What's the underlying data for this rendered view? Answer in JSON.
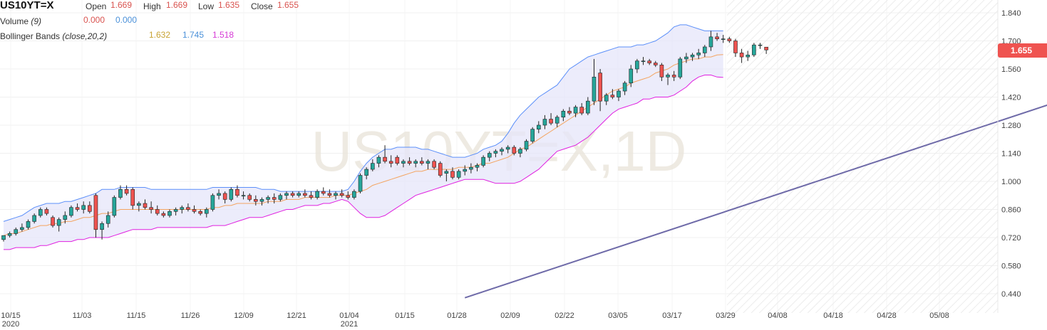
{
  "legend": {
    "symbol": "US10YT=X",
    "ohlc": {
      "open_label": "Open",
      "open": "1.669",
      "high_label": "High",
      "high": "1.669",
      "low_label": "Low",
      "low": "1.635",
      "close_label": "Close",
      "close": "1.655"
    },
    "volume": {
      "name": "Volume",
      "param": "(9)",
      "v1": "0.000",
      "v2": "0.000"
    },
    "bollinger": {
      "name": "Bollinger Bands",
      "param": "(close,20,2)",
      "mid": "1.632",
      "upper": "1.745",
      "lower": "1.518"
    }
  },
  "last_price_tag": "1.655",
  "watermark": "US10YT=X,1D",
  "colors": {
    "up": "#26a69a",
    "down": "#ef5350",
    "band_line": "#5b8ff9",
    "band_fill": "#e6e6fa",
    "lower_band": "#e020e0",
    "mid_band": "#f4a460",
    "trendline": "#6e6aa8",
    "value_red": "#d9534f",
    "value_blue": "#4a90d9",
    "value_gold": "#c8a232",
    "value_magenta": "#d63ad6",
    "tag": "#ef5350"
  },
  "chart_data": {
    "type": "candlestick",
    "y_axis": {
      "ticks": [
        "1.840",
        "1.700",
        "1.560",
        "1.420",
        "1.280",
        "1.140",
        "1.000",
        "0.860",
        "0.720",
        "0.580",
        "0.440"
      ],
      "range": [
        0.33,
        1.9
      ]
    },
    "x_axis": {
      "ticks": [
        {
          "label": "10/15",
          "sub": "2020",
          "date": "2020-10-15"
        },
        {
          "label": "11/03",
          "sub": "",
          "date": "2020-11-03"
        },
        {
          "label": "11/15",
          "sub": "",
          "date": "2020-11-15"
        },
        {
          "label": "11/26",
          "sub": "",
          "date": "2020-11-26"
        },
        {
          "label": "12/09",
          "sub": "",
          "date": "2020-12-09"
        },
        {
          "label": "12/21",
          "sub": "",
          "date": "2020-12-21"
        },
        {
          "label": "01/04",
          "sub": "2021",
          "date": "2021-01-04"
        },
        {
          "label": "01/15",
          "sub": "",
          "date": "2021-01-15"
        },
        {
          "label": "01/28",
          "sub": "",
          "date": "2021-01-28"
        },
        {
          "label": "02/09",
          "sub": "",
          "date": "2021-02-09"
        },
        {
          "label": "02/22",
          "sub": "",
          "date": "2021-02-22"
        },
        {
          "label": "03/05",
          "sub": "",
          "date": "2021-03-05"
        },
        {
          "label": "03/17",
          "sub": "",
          "date": "2021-03-17"
        },
        {
          "label": "03/29",
          "sub": "",
          "date": "2021-03-29"
        },
        {
          "label": "04/08",
          "sub": "",
          "date": "2021-04-08"
        },
        {
          "label": "04/18",
          "sub": "",
          "date": "2021-04-18"
        },
        {
          "label": "04/28",
          "sub": "",
          "date": "2021-04-28"
        },
        {
          "label": "05/08",
          "sub": "",
          "date": "2021-05-08"
        }
      ]
    },
    "candles": [
      {
        "o": 0.71,
        "h": 0.73,
        "l": 0.7,
        "c": 0.73
      },
      {
        "o": 0.73,
        "h": 0.75,
        "l": 0.72,
        "c": 0.74
      },
      {
        "o": 0.74,
        "h": 0.77,
        "l": 0.73,
        "c": 0.76
      },
      {
        "o": 0.76,
        "h": 0.79,
        "l": 0.75,
        "c": 0.77
      },
      {
        "o": 0.77,
        "h": 0.81,
        "l": 0.76,
        "c": 0.8
      },
      {
        "o": 0.8,
        "h": 0.84,
        "l": 0.79,
        "c": 0.83
      },
      {
        "o": 0.83,
        "h": 0.87,
        "l": 0.82,
        "c": 0.86
      },
      {
        "o": 0.86,
        "h": 0.87,
        "l": 0.83,
        "c": 0.84
      },
      {
        "o": 0.82,
        "h": 0.83,
        "l": 0.77,
        "c": 0.78
      },
      {
        "o": 0.78,
        "h": 0.82,
        "l": 0.75,
        "c": 0.81
      },
      {
        "o": 0.81,
        "h": 0.85,
        "l": 0.79,
        "c": 0.83
      },
      {
        "o": 0.83,
        "h": 0.88,
        "l": 0.82,
        "c": 0.87
      },
      {
        "o": 0.87,
        "h": 0.89,
        "l": 0.85,
        "c": 0.86
      },
      {
        "o": 0.86,
        "h": 0.9,
        "l": 0.84,
        "c": 0.88
      },
      {
        "o": 0.88,
        "h": 0.9,
        "l": 0.84,
        "c": 0.85
      },
      {
        "o": 0.93,
        "h": 0.94,
        "l": 0.72,
        "c": 0.76
      },
      {
        "o": 0.76,
        "h": 0.8,
        "l": 0.71,
        "c": 0.79
      },
      {
        "o": 0.79,
        "h": 0.85,
        "l": 0.77,
        "c": 0.83
      },
      {
        "o": 0.83,
        "h": 0.93,
        "l": 0.82,
        "c": 0.92
      },
      {
        "o": 0.92,
        "h": 0.98,
        "l": 0.91,
        "c": 0.96
      },
      {
        "o": 0.96,
        "h": 0.98,
        "l": 0.93,
        "c": 0.94
      },
      {
        "o": 0.96,
        "h": 0.97,
        "l": 0.86,
        "c": 0.88
      },
      {
        "o": 0.88,
        "h": 0.9,
        "l": 0.85,
        "c": 0.89
      },
      {
        "o": 0.89,
        "h": 0.91,
        "l": 0.86,
        "c": 0.87
      },
      {
        "o": 0.87,
        "h": 0.9,
        "l": 0.84,
        "c": 0.86
      },
      {
        "o": 0.86,
        "h": 0.88,
        "l": 0.83,
        "c": 0.84
      },
      {
        "o": 0.84,
        "h": 0.85,
        "l": 0.82,
        "c": 0.83
      },
      {
        "o": 0.83,
        "h": 0.86,
        "l": 0.82,
        "c": 0.85
      },
      {
        "o": 0.85,
        "h": 0.87,
        "l": 0.83,
        "c": 0.86
      },
      {
        "o": 0.86,
        "h": 0.88,
        "l": 0.84,
        "c": 0.87
      },
      {
        "o": 0.87,
        "h": 0.89,
        "l": 0.85,
        "c": 0.86
      },
      {
        "o": 0.86,
        "h": 0.88,
        "l": 0.84,
        "c": 0.85
      },
      {
        "o": 0.85,
        "h": 0.86,
        "l": 0.83,
        "c": 0.84
      },
      {
        "o": 0.84,
        "h": 0.87,
        "l": 0.82,
        "c": 0.86
      },
      {
        "o": 0.86,
        "h": 0.94,
        "l": 0.85,
        "c": 0.93
      },
      {
        "o": 0.93,
        "h": 0.96,
        "l": 0.91,
        "c": 0.94
      },
      {
        "o": 0.94,
        "h": 0.95,
        "l": 0.89,
        "c": 0.91
      },
      {
        "o": 0.91,
        "h": 0.97,
        "l": 0.9,
        "c": 0.96
      },
      {
        "o": 0.96,
        "h": 0.98,
        "l": 0.92,
        "c": 0.93
      },
      {
        "o": 0.93,
        "h": 0.95,
        "l": 0.91,
        "c": 0.93
      },
      {
        "o": 0.93,
        "h": 0.94,
        "l": 0.9,
        "c": 0.91
      },
      {
        "o": 0.91,
        "h": 0.93,
        "l": 0.88,
        "c": 0.9
      },
      {
        "o": 0.9,
        "h": 0.92,
        "l": 0.88,
        "c": 0.91
      },
      {
        "o": 0.91,
        "h": 0.93,
        "l": 0.89,
        "c": 0.92
      },
      {
        "o": 0.92,
        "h": 0.94,
        "l": 0.89,
        "c": 0.91
      },
      {
        "o": 0.91,
        "h": 0.94,
        "l": 0.9,
        "c": 0.93
      },
      {
        "o": 0.93,
        "h": 0.95,
        "l": 0.91,
        "c": 0.94
      },
      {
        "o": 0.94,
        "h": 0.95,
        "l": 0.92,
        "c": 0.93
      },
      {
        "o": 0.93,
        "h": 0.95,
        "l": 0.92,
        "c": 0.94
      },
      {
        "o": 0.94,
        "h": 0.96,
        "l": 0.92,
        "c": 0.93
      },
      {
        "o": 0.93,
        "h": 0.95,
        "l": 0.91,
        "c": 0.92
      },
      {
        "o": 0.92,
        "h": 0.96,
        "l": 0.91,
        "c": 0.95
      },
      {
        "o": 0.95,
        "h": 0.97,
        "l": 0.93,
        "c": 0.94
      },
      {
        "o": 0.94,
        "h": 0.96,
        "l": 0.92,
        "c": 0.93
      },
      {
        "o": 0.93,
        "h": 0.95,
        "l": 0.91,
        "c": 0.94
      },
      {
        "o": 0.94,
        "h": 0.96,
        "l": 0.92,
        "c": 0.93
      },
      {
        "o": 0.93,
        "h": 0.95,
        "l": 0.91,
        "c": 0.92
      },
      {
        "o": 0.92,
        "h": 0.96,
        "l": 0.91,
        "c": 0.95
      },
      {
        "o": 0.95,
        "h": 1.04,
        "l": 0.94,
        "c": 1.03
      },
      {
        "o": 1.03,
        "h": 1.07,
        "l": 1.01,
        "c": 1.06
      },
      {
        "o": 1.06,
        "h": 1.11,
        "l": 1.05,
        "c": 1.09
      },
      {
        "o": 1.09,
        "h": 1.13,
        "l": 1.07,
        "c": 1.12
      },
      {
        "o": 1.12,
        "h": 1.18,
        "l": 1.09,
        "c": 1.1
      },
      {
        "o": 1.1,
        "h": 1.13,
        "l": 1.07,
        "c": 1.09
      },
      {
        "o": 1.12,
        "h": 1.13,
        "l": 1.08,
        "c": 1.09
      },
      {
        "o": 1.09,
        "h": 1.11,
        "l": 1.07,
        "c": 1.1
      },
      {
        "o": 1.1,
        "h": 1.12,
        "l": 1.08,
        "c": 1.09
      },
      {
        "o": 1.09,
        "h": 1.11,
        "l": 1.07,
        "c": 1.1
      },
      {
        "o": 1.1,
        "h": 1.12,
        "l": 1.08,
        "c": 1.09
      },
      {
        "o": 1.09,
        "h": 1.11,
        "l": 1.06,
        "c": 1.1
      },
      {
        "o": 1.1,
        "h": 1.11,
        "l": 1.06,
        "c": 1.07
      },
      {
        "o": 1.09,
        "h": 1.1,
        "l": 1.02,
        "c": 1.03
      },
      {
        "o": 1.04,
        "h": 1.06,
        "l": 1.0,
        "c": 1.05
      },
      {
        "o": 1.05,
        "h": 1.07,
        "l": 1.01,
        "c": 1.02
      },
      {
        "o": 1.02,
        "h": 1.06,
        "l": 1.01,
        "c": 1.05
      },
      {
        "o": 1.05,
        "h": 1.08,
        "l": 1.03,
        "c": 1.06
      },
      {
        "o": 1.06,
        "h": 1.09,
        "l": 1.04,
        "c": 1.07
      },
      {
        "o": 1.07,
        "h": 1.09,
        "l": 1.05,
        "c": 1.08
      },
      {
        "o": 1.08,
        "h": 1.13,
        "l": 1.07,
        "c": 1.12
      },
      {
        "o": 1.12,
        "h": 1.15,
        "l": 1.1,
        "c": 1.14
      },
      {
        "o": 1.14,
        "h": 1.16,
        "l": 1.12,
        "c": 1.15
      },
      {
        "o": 1.15,
        "h": 1.17,
        "l": 1.13,
        "c": 1.16
      },
      {
        "o": 1.16,
        "h": 1.18,
        "l": 1.14,
        "c": 1.17
      },
      {
        "o": 1.17,
        "h": 1.18,
        "l": 1.13,
        "c": 1.14
      },
      {
        "o": 1.14,
        "h": 1.17,
        "l": 1.12,
        "c": 1.16
      },
      {
        "o": 1.16,
        "h": 1.21,
        "l": 1.15,
        "c": 1.2
      },
      {
        "o": 1.2,
        "h": 1.27,
        "l": 1.19,
        "c": 1.26
      },
      {
        "o": 1.26,
        "h": 1.3,
        "l": 1.24,
        "c": 1.28
      },
      {
        "o": 1.28,
        "h": 1.33,
        "l": 1.26,
        "c": 1.31
      },
      {
        "o": 1.31,
        "h": 1.34,
        "l": 1.28,
        "c": 1.29
      },
      {
        "o": 1.29,
        "h": 1.33,
        "l": 1.27,
        "c": 1.32
      },
      {
        "o": 1.32,
        "h": 1.36,
        "l": 1.3,
        "c": 1.35
      },
      {
        "o": 1.35,
        "h": 1.37,
        "l": 1.33,
        "c": 1.34
      },
      {
        "o": 1.34,
        "h": 1.38,
        "l": 1.32,
        "c": 1.37
      },
      {
        "o": 1.37,
        "h": 1.39,
        "l": 1.33,
        "c": 1.34
      },
      {
        "o": 1.34,
        "h": 1.42,
        "l": 1.33,
        "c": 1.4
      },
      {
        "o": 1.4,
        "h": 1.61,
        "l": 1.38,
        "c": 1.52
      },
      {
        "o": 1.54,
        "h": 1.56,
        "l": 1.35,
        "c": 1.4
      },
      {
        "o": 1.4,
        "h": 1.44,
        "l": 1.38,
        "c": 1.43
      },
      {
        "o": 1.43,
        "h": 1.46,
        "l": 1.41,
        "c": 1.42
      },
      {
        "o": 1.42,
        "h": 1.46,
        "l": 1.4,
        "c": 1.45
      },
      {
        "o": 1.45,
        "h": 1.5,
        "l": 1.43,
        "c": 1.49
      },
      {
        "o": 1.49,
        "h": 1.58,
        "l": 1.47,
        "c": 1.56
      },
      {
        "o": 1.56,
        "h": 1.61,
        "l": 1.54,
        "c": 1.6
      },
      {
        "o": 1.6,
        "h": 1.62,
        "l": 1.58,
        "c": 1.6
      },
      {
        "o": 1.6,
        "h": 1.61,
        "l": 1.58,
        "c": 1.59
      },
      {
        "o": 1.59,
        "h": 1.6,
        "l": 1.57,
        "c": 1.58
      },
      {
        "o": 1.58,
        "h": 1.59,
        "l": 1.5,
        "c": 1.52
      },
      {
        "o": 1.52,
        "h": 1.54,
        "l": 1.48,
        "c": 1.53
      },
      {
        "o": 1.53,
        "h": 1.55,
        "l": 1.5,
        "c": 1.52
      },
      {
        "o": 1.52,
        "h": 1.62,
        "l": 1.51,
        "c": 1.61
      },
      {
        "o": 1.61,
        "h": 1.64,
        "l": 1.59,
        "c": 1.62
      },
      {
        "o": 1.62,
        "h": 1.64,
        "l": 1.6,
        "c": 1.63
      },
      {
        "o": 1.63,
        "h": 1.66,
        "l": 1.61,
        "c": 1.64
      },
      {
        "o": 1.64,
        "h": 1.68,
        "l": 1.62,
        "c": 1.67
      },
      {
        "o": 1.67,
        "h": 1.75,
        "l": 1.65,
        "c": 1.72
      },
      {
        "o": 1.72,
        "h": 1.74,
        "l": 1.7,
        "c": 1.71
      },
      {
        "o": 1.71,
        "h": 1.73,
        "l": 1.69,
        "c": 1.71
      },
      {
        "o": 1.71,
        "h": 1.72,
        "l": 1.69,
        "c": 1.7
      },
      {
        "o": 1.7,
        "h": 1.71,
        "l": 1.62,
        "c": 1.64
      },
      {
        "o": 1.64,
        "h": 1.66,
        "l": 1.59,
        "c": 1.62
      },
      {
        "o": 1.62,
        "h": 1.65,
        "l": 1.6,
        "c": 1.63
      },
      {
        "o": 1.63,
        "h": 1.69,
        "l": 1.62,
        "c": 1.68
      },
      {
        "o": 1.68,
        "h": 1.69,
        "l": 1.66,
        "c": 1.68
      },
      {
        "o": 1.669,
        "h": 1.669,
        "l": 1.635,
        "c": 1.655
      }
    ],
    "bollinger_upper": [
      0.8,
      0.81,
      0.82,
      0.83,
      0.85,
      0.87,
      0.88,
      0.89,
      0.89,
      0.89,
      0.9,
      0.9,
      0.91,
      0.92,
      0.93,
      0.94,
      0.96,
      0.96,
      0.96,
      0.97,
      0.97,
      0.97,
      0.97,
      0.97,
      0.96,
      0.96,
      0.96,
      0.96,
      0.96,
      0.96,
      0.96,
      0.96,
      0.96,
      0.96,
      0.97,
      0.97,
      0.97,
      0.97,
      0.97,
      0.97,
      0.97,
      0.97,
      0.96,
      0.96,
      0.96,
      0.95,
      0.95,
      0.95,
      0.95,
      0.95,
      0.95,
      0.95,
      0.95,
      0.95,
      0.95,
      0.95,
      0.96,
      1.0,
      1.05,
      1.09,
      1.12,
      1.14,
      1.16,
      1.16,
      1.17,
      1.17,
      1.17,
      1.17,
      1.16,
      1.16,
      1.15,
      1.14,
      1.13,
      1.12,
      1.12,
      1.12,
      1.13,
      1.14,
      1.16,
      1.17,
      1.18,
      1.2,
      1.24,
      1.29,
      1.33,
      1.36,
      1.39,
      1.42,
      1.44,
      1.46,
      1.48,
      1.52,
      1.56,
      1.58,
      1.6,
      1.62,
      1.63,
      1.64,
      1.65,
      1.66,
      1.67,
      1.67,
      1.67,
      1.68,
      1.68,
      1.69,
      1.7,
      1.72,
      1.74,
      1.77,
      1.78,
      1.78,
      1.77,
      1.76,
      1.75,
      1.75,
      1.75,
      1.75
    ],
    "bollinger_mid": [
      0.73,
      0.74,
      0.74,
      0.75,
      0.76,
      0.77,
      0.78,
      0.78,
      0.79,
      0.79,
      0.8,
      0.8,
      0.81,
      0.82,
      0.82,
      0.83,
      0.84,
      0.84,
      0.85,
      0.86,
      0.86,
      0.86,
      0.86,
      0.86,
      0.86,
      0.86,
      0.86,
      0.86,
      0.86,
      0.86,
      0.86,
      0.86,
      0.86,
      0.86,
      0.87,
      0.87,
      0.88,
      0.88,
      0.89,
      0.89,
      0.89,
      0.89,
      0.89,
      0.9,
      0.9,
      0.9,
      0.91,
      0.91,
      0.91,
      0.92,
      0.92,
      0.92,
      0.92,
      0.92,
      0.93,
      0.93,
      0.93,
      0.94,
      0.95,
      0.96,
      0.98,
      0.99,
      1.0,
      1.01,
      1.02,
      1.03,
      1.04,
      1.05,
      1.05,
      1.06,
      1.06,
      1.06,
      1.06,
      1.06,
      1.07,
      1.07,
      1.07,
      1.08,
      1.09,
      1.09,
      1.1,
      1.11,
      1.12,
      1.14,
      1.16,
      1.17,
      1.19,
      1.21,
      1.23,
      1.25,
      1.27,
      1.29,
      1.31,
      1.33,
      1.35,
      1.37,
      1.39,
      1.41,
      1.43,
      1.45,
      1.46,
      1.47,
      1.49,
      1.5,
      1.51,
      1.52,
      1.54,
      1.55,
      1.56,
      1.58,
      1.59,
      1.6,
      1.61,
      1.61,
      1.62,
      1.62,
      1.63,
      1.632
    ],
    "bollinger_lower": [
      0.66,
      0.66,
      0.67,
      0.67,
      0.67,
      0.67,
      0.68,
      0.68,
      0.69,
      0.7,
      0.7,
      0.7,
      0.71,
      0.71,
      0.72,
      0.72,
      0.72,
      0.72,
      0.73,
      0.74,
      0.75,
      0.76,
      0.76,
      0.76,
      0.76,
      0.77,
      0.77,
      0.77,
      0.77,
      0.77,
      0.77,
      0.77,
      0.77,
      0.77,
      0.78,
      0.78,
      0.78,
      0.79,
      0.8,
      0.81,
      0.82,
      0.82,
      0.82,
      0.83,
      0.84,
      0.85,
      0.86,
      0.86,
      0.87,
      0.88,
      0.88,
      0.88,
      0.89,
      0.89,
      0.9,
      0.91,
      0.9,
      0.87,
      0.84,
      0.82,
      0.82,
      0.82,
      0.83,
      0.85,
      0.87,
      0.89,
      0.91,
      0.93,
      0.94,
      0.95,
      0.96,
      0.97,
      0.98,
      0.99,
      1.0,
      1.01,
      1.01,
      1.01,
      1.01,
      1.0,
      0.99,
      0.99,
      0.99,
      0.99,
      1.0,
      1.02,
      1.04,
      1.06,
      1.09,
      1.12,
      1.15,
      1.16,
      1.17,
      1.18,
      1.2,
      1.22,
      1.25,
      1.28,
      1.31,
      1.34,
      1.36,
      1.37,
      1.38,
      1.39,
      1.41,
      1.41,
      1.42,
      1.42,
      1.42,
      1.43,
      1.45,
      1.47,
      1.5,
      1.52,
      1.53,
      1.53,
      1.52,
      1.518
    ],
    "trendline": {
      "x0": 75.0,
      "y0": 0.42,
      "x1": 221.0,
      "y1": 1.9
    }
  }
}
